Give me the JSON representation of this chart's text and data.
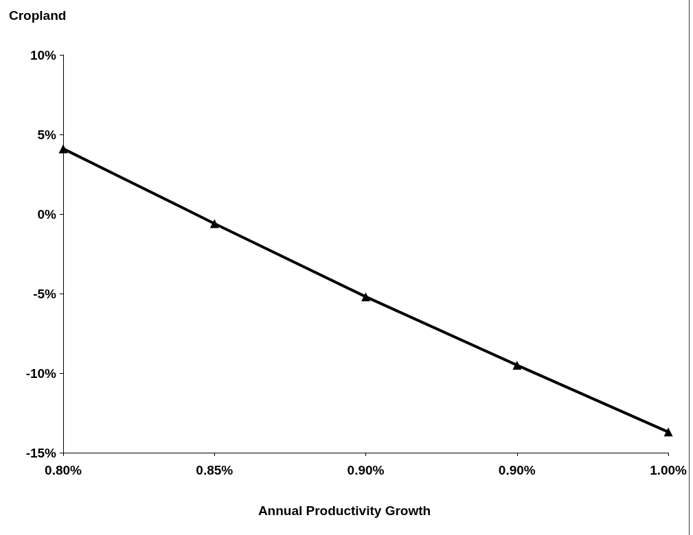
{
  "chart_data": {
    "type": "line",
    "ylabel": "Cropland",
    "xlabel": "Annual Productivity Growth",
    "categories": [
      "0.80%",
      "0.85%",
      "0.90%",
      "0.90%",
      "1.00%"
    ],
    "series": [
      {
        "color": "#000000",
        "values": [
          4.1,
          -0.6,
          -5.2,
          -9.5,
          -13.7
        ]
      }
    ],
    "ylim": [
      -15,
      10
    ],
    "yticks": [
      {
        "value": -15,
        "label": "-15%"
      },
      {
        "value": -10,
        "label": "-10%"
      },
      {
        "value": -5,
        "label": "-5%"
      },
      {
        "value": 0,
        "label": "0%"
      },
      {
        "value": 5,
        "label": "5%"
      },
      {
        "value": 10,
        "label": "10%"
      }
    ],
    "marker": "triangle",
    "line_style": "solid"
  }
}
